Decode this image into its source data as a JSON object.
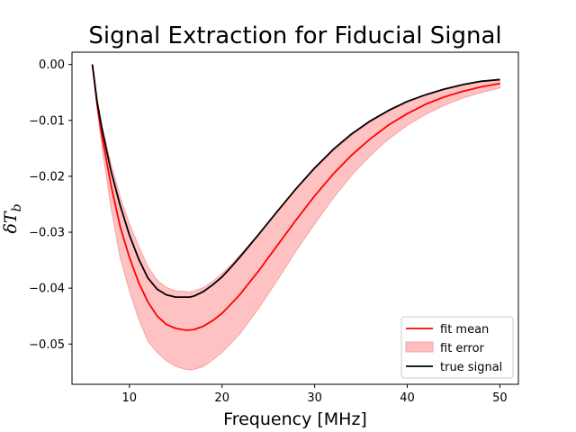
{
  "chart_data": {
    "type": "line",
    "title": "Signal Extraction for Fiducial Signal",
    "xlabel": "Frequency [MHz]",
    "ylabel_main": "δT",
    "ylabel_sub": "b",
    "xlim": [
      3.8,
      52
    ],
    "ylim": [
      -0.0572,
      0.0022
    ],
    "xticks": [
      10,
      20,
      30,
      40,
      50
    ],
    "xtick_labels": [
      "10",
      "20",
      "30",
      "40",
      "50"
    ],
    "yticks": [
      0.0,
      -0.01,
      -0.02,
      -0.03,
      -0.04,
      -0.05
    ],
    "ytick_labels": [
      "0.00",
      "−0.01",
      "−0.02",
      "−0.03",
      "−0.04",
      "−0.05"
    ],
    "x": [
      6,
      6.5,
      7,
      8,
      9,
      10,
      11,
      12,
      13,
      14,
      15,
      16,
      16.5,
      17,
      18,
      19,
      20,
      21,
      22,
      24,
      26,
      28,
      30,
      32,
      34,
      36,
      38,
      40,
      42,
      44,
      46,
      48,
      50
    ],
    "series": [
      {
        "name": "fit mean",
        "color": "#ff0000",
        "values": [
          0.0,
          -0.007,
          -0.0125,
          -0.0215,
          -0.029,
          -0.0345,
          -0.039,
          -0.0425,
          -0.045,
          -0.0465,
          -0.0472,
          -0.0475,
          -0.0475,
          -0.0474,
          -0.0468,
          -0.0458,
          -0.0445,
          -0.0428,
          -0.041,
          -0.0368,
          -0.0323,
          -0.0278,
          -0.0235,
          -0.0196,
          -0.0162,
          -0.0133,
          -0.0108,
          -0.0088,
          -0.0071,
          -0.0058,
          -0.0048,
          -0.004,
          -0.0034
        ]
      },
      {
        "name": "fit error",
        "color": "#ffbfbf",
        "values_upper": [
          0.0,
          -0.0062,
          -0.0107,
          -0.0177,
          -0.0237,
          -0.0285,
          -0.0325,
          -0.0362,
          -0.0386,
          -0.0399,
          -0.0405,
          -0.0406,
          -0.0407,
          -0.0405,
          -0.0399,
          -0.0388,
          -0.0374,
          -0.0358,
          -0.034,
          -0.0302,
          -0.0263,
          -0.0224,
          -0.0187,
          -0.0155,
          -0.0127,
          -0.0103,
          -0.0084,
          -0.0068,
          -0.0055,
          -0.0045,
          -0.0037,
          -0.0031,
          -0.0026
        ],
        "values_lower": [
          0.0,
          -0.0078,
          -0.0143,
          -0.0255,
          -0.0345,
          -0.0405,
          -0.0455,
          -0.0495,
          -0.0515,
          -0.053,
          -0.054,
          -0.0545,
          -0.0546,
          -0.0545,
          -0.054,
          -0.0528,
          -0.0515,
          -0.0498,
          -0.048,
          -0.0435,
          -0.0385,
          -0.0333,
          -0.0285,
          -0.0239,
          -0.0198,
          -0.0163,
          -0.0133,
          -0.0109,
          -0.0089,
          -0.0073,
          -0.006,
          -0.005,
          -0.0042
        ]
      },
      {
        "name": "true signal",
        "color": "#000000",
        "values": [
          0.0,
          -0.0065,
          -0.0112,
          -0.019,
          -0.0252,
          -0.0305,
          -0.0348,
          -0.0382,
          -0.0402,
          -0.0412,
          -0.0416,
          -0.0416,
          -0.0416,
          -0.0414,
          -0.0406,
          -0.0394,
          -0.038,
          -0.0362,
          -0.0343,
          -0.0303,
          -0.0262,
          -0.0222,
          -0.0185,
          -0.0152,
          -0.0124,
          -0.0101,
          -0.0082,
          -0.0066,
          -0.0054,
          -0.0044,
          -0.0036,
          -0.003,
          -0.0027
        ]
      }
    ],
    "legend": {
      "placement": "lower-right",
      "entries": [
        "fit mean",
        "fit error",
        "true signal"
      ]
    }
  }
}
